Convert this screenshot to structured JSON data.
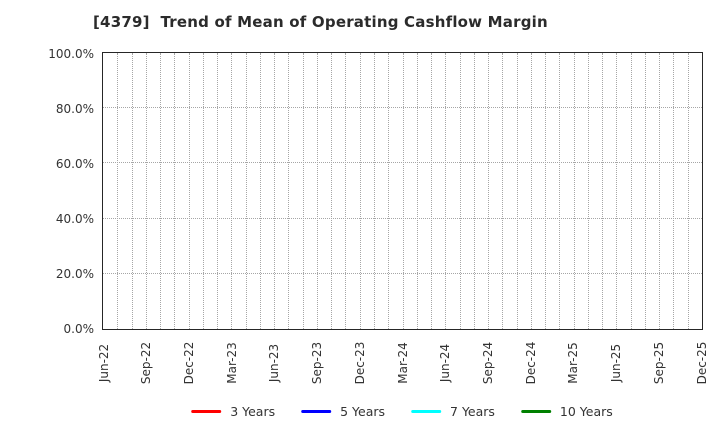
{
  "chart_data": {
    "type": "line",
    "title": "[4379]  Trend of Mean of Operating Cashflow Margin",
    "x_tick_labels": [
      "Jun-22",
      "Sep-22",
      "Dec-22",
      "Mar-23",
      "Jun-23",
      "Sep-23",
      "Dec-23",
      "Mar-24",
      "Jun-24",
      "Sep-24",
      "Dec-24",
      "Mar-25",
      "Jun-25",
      "Sep-25",
      "Dec-25"
    ],
    "x_minor_divisions_per_tick": 3,
    "y_tick_values": [
      0,
      20,
      40,
      60,
      80,
      100
    ],
    "y_tick_labels": [
      "0.0%",
      "20.0%",
      "40.0%",
      "60.0%",
      "80.0%",
      "100.0%"
    ],
    "ylim": [
      0,
      100
    ],
    "grid": "dotted",
    "legend_position": "bottom-center",
    "plot_is_empty": true,
    "series": [
      {
        "name": "3 Years",
        "color": "#ff0000",
        "values": []
      },
      {
        "name": "5 Years",
        "color": "#0000ff",
        "values": []
      },
      {
        "name": "7 Years",
        "color": "#00ffff",
        "values": []
      },
      {
        "name": "10 Years",
        "color": "#008000",
        "values": []
      }
    ]
  },
  "colors": {
    "text": "#333333",
    "grid": "#a6a6a6",
    "spine": "#262626"
  }
}
